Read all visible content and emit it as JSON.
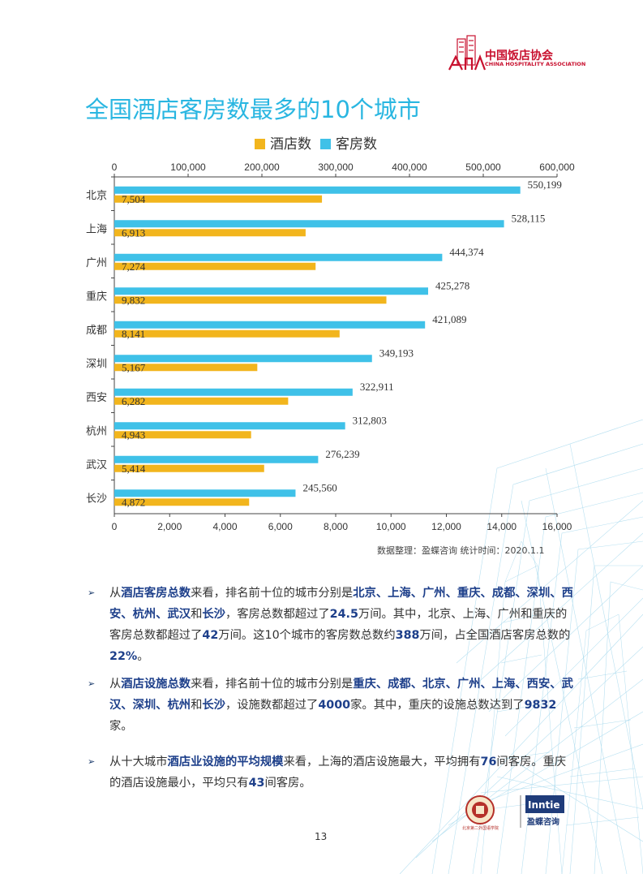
{
  "header": {
    "org_name": "中国饭店协会",
    "org_name_en": "CHINA HOSPITALITY ASSOCIATION"
  },
  "title": "全国酒店客房数最多的10个城市",
  "colors": {
    "hotels": "#f2b51d",
    "rooms": "#3fc1e8",
    "highlight": "#1d3f8a",
    "title": "#29b6e1"
  },
  "chart_data": {
    "type": "bar",
    "orientation": "horizontal",
    "categories": [
      "北京",
      "上海",
      "广州",
      "重庆",
      "成都",
      "深圳",
      "西安",
      "杭州",
      "武汉",
      "长沙"
    ],
    "series": [
      {
        "name": "酒店数",
        "axis": "bottom",
        "values": [
          7504,
          6913,
          7274,
          9832,
          8141,
          5167,
          6282,
          4943,
          5414,
          4872
        ],
        "labels": [
          "7,504",
          "6,913",
          "7,274",
          "9,832",
          "8,141",
          "5,167",
          "6,282",
          "4,943",
          "5,414",
          "4,872"
        ]
      },
      {
        "name": "客房数",
        "axis": "top",
        "values": [
          550199,
          528115,
          444374,
          425278,
          421089,
          349193,
          322911,
          312803,
          276239,
          245560
        ],
        "labels": [
          "550,199",
          "528,115",
          "444,374",
          "425,278",
          "421,089",
          "349,193",
          "322,911",
          "312,803",
          "276,239",
          "245,560"
        ]
      }
    ],
    "top_axis": {
      "range": [
        0,
        600000
      ],
      "ticks": [
        "0",
        "100,000",
        "200,000",
        "300,000",
        "400,000",
        "500,000",
        "600,000"
      ]
    },
    "bottom_axis": {
      "range": [
        0,
        16000
      ],
      "ticks": [
        "0",
        "2,000",
        "4,000",
        "6,000",
        "8,000",
        "10,000",
        "12,000",
        "14,000",
        "16,000"
      ]
    },
    "legend": [
      "酒店数",
      "客房数"
    ]
  },
  "source_note": "数据整理：盈蝶咨询  统计时间：2020.1.1",
  "bullets": [
    [
      {
        "t": "从"
      },
      {
        "t": "酒店客房总数",
        "b": true
      },
      {
        "t": "来看，排名前十位的城市分别是"
      },
      {
        "t": "北京、上海、广州、重庆、成都、深圳、西安、杭州、武汉",
        "b": true
      },
      {
        "t": "和"
      },
      {
        "t": "长沙",
        "b": true
      },
      {
        "t": "，客房总数都超过了"
      },
      {
        "t": "24.5",
        "b": true
      },
      {
        "t": "万间。其中，北京、上海、广州和重庆的客房总数都超过了"
      },
      {
        "t": "42",
        "b": true
      },
      {
        "t": "万间。这10个城市的客房数总数约"
      },
      {
        "t": "388",
        "b": true
      },
      {
        "t": "万间，占全国酒店客房总数的"
      },
      {
        "t": "22%",
        "b": true
      },
      {
        "t": "。"
      }
    ],
    [
      {
        "t": "从"
      },
      {
        "t": "酒店设施总数",
        "b": true
      },
      {
        "t": "来看，排名前十位的城市分别是"
      },
      {
        "t": "重庆、成都、北京、广州、上海、西安、武汉、深圳、杭州",
        "b": true
      },
      {
        "t": "和"
      },
      {
        "t": "长沙",
        "b": true
      },
      {
        "t": "，设施数都超过了"
      },
      {
        "t": "4000",
        "b": true
      },
      {
        "t": "家。其中，重庆的设施总数达到了"
      },
      {
        "t": "9832",
        "b": true
      },
      {
        "t": "家。"
      }
    ],
    [
      {
        "t": "从十大城市"
      },
      {
        "t": "酒店业设施的平均规模",
        "b": true
      },
      {
        "t": "来看，上海的酒店设施最大，平均拥有"
      },
      {
        "t": "76",
        "b": true
      },
      {
        "t": "间客房。重庆的酒店设施最小，平均只有"
      },
      {
        "t": "43",
        "b": true
      },
      {
        "t": "间客房。"
      }
    ]
  ],
  "bullet_symbol": "➢",
  "footer": {
    "brand": "Inntie",
    "brand_cn": "盈蝶咨询",
    "left_logo_caption": "北京第二外国语学院"
  },
  "page_number": "13"
}
